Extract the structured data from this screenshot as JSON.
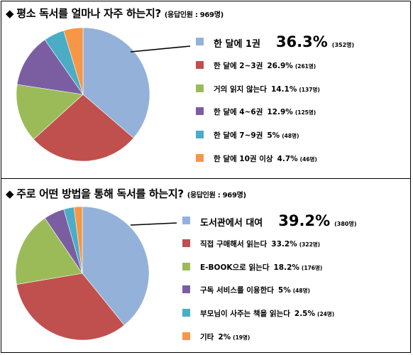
{
  "chart_data": [
    {
      "type": "pie",
      "title": "평소 독서를 얼마나 자주 하는지?",
      "title_note": "(응답인원 : 969명)",
      "slices": [
        {
          "label": "한 달에 1권",
          "pct": 36.3,
          "pct_text": "36.3%",
          "count_text": "(352명)",
          "color": "#94b2d9"
        },
        {
          "label": "한 달에 2~3권",
          "pct": 26.9,
          "pct_text": "26.9%",
          "count_text": "(261명)",
          "color": "#c0504d"
        },
        {
          "label": "거의 읽지 않는다",
          "pct": 14.1,
          "pct_text": "14.1%",
          "count_text": "(137명)",
          "color": "#9bbb59"
        },
        {
          "label": "한 달에 4~6권",
          "pct": 12.9,
          "pct_text": "12.9%",
          "count_text": "(125명)",
          "color": "#7b5ea2"
        },
        {
          "label": "한 달에 7~9권",
          "pct": 5,
          "pct_text": "5%",
          "count_text": "(48명)",
          "color": "#4bacc6"
        },
        {
          "label": "한 달에 10권 이상",
          "pct": 4.7,
          "pct_text": "4.7%",
          "count_text": "(46명)",
          "color": "#f79646"
        }
      ]
    },
    {
      "type": "pie",
      "title": "주로 어떤 방법을 통해 독서를 하는지?",
      "title_note": "(응답인원 : 969명)",
      "slices": [
        {
          "label": "도서관에서 대여",
          "pct": 39.2,
          "pct_text": "39.2%",
          "count_text": "(380명)",
          "color": "#94b2d9"
        },
        {
          "label": "직접 구매해서 읽는다",
          "pct": 33.2,
          "pct_text": "33.2%",
          "count_text": "(322명)",
          "color": "#c0504d"
        },
        {
          "label": "E-BOOK으로 읽는다",
          "pct": 18.2,
          "pct_text": "18.2%",
          "count_text": "(176명)",
          "color": "#9bbb59"
        },
        {
          "label": "구독 서비스를 이용한다",
          "pct": 5,
          "pct_text": "5%",
          "count_text": "(48명)",
          "color": "#7b5ea2"
        },
        {
          "label": "부모님이 사주는 책을 읽는다",
          "pct": 2.5,
          "pct_text": "2.5%",
          "count_text": "(24명)",
          "color": "#4bacc6"
        },
        {
          "label": "기타",
          "pct": 2,
          "pct_text": "2%",
          "count_text": "(19명)",
          "color": "#f79646"
        }
      ]
    }
  ],
  "bullet_symbol": "◆"
}
